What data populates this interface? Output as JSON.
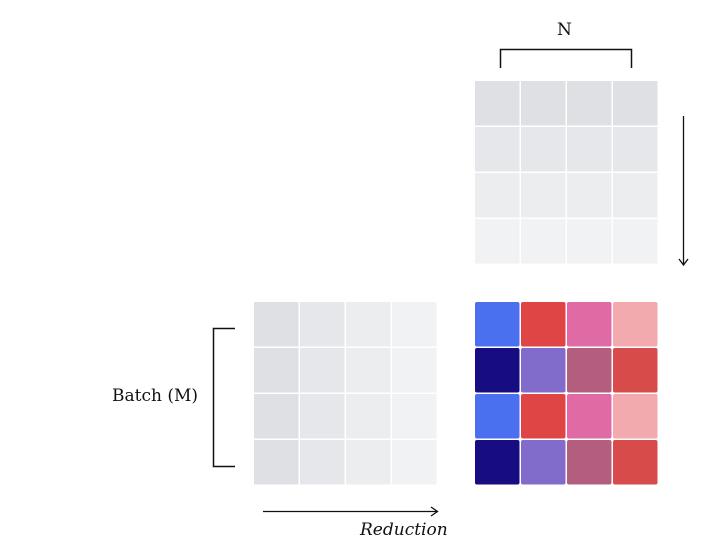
{
  "labels": {
    "n": "N",
    "batch": "Batch (M)",
    "reduction": "Reduction"
  },
  "matrices": {
    "weights": {
      "shading": "by-row",
      "colors": [
        "#dfe0e3",
        "#e6e7ea",
        "#ecedef",
        "#f1f2f4"
      ]
    },
    "inputs": {
      "shading": "by-column",
      "colors": [
        "#dfe0e3",
        "#e6e7ea",
        "#ecedef",
        "#f1f2f4"
      ]
    },
    "output": {
      "rows": [
        [
          "#4a70f0",
          "#e04545",
          "#e06aa3",
          "#f2aaae"
        ],
        [
          "#170c82",
          "#816ccb",
          "#b35e7e",
          "#d84b4b"
        ],
        [
          "#4a70f0",
          "#e04545",
          "#e06aa3",
          "#f2aaae"
        ],
        [
          "#170c82",
          "#816ccb",
          "#b35e7e",
          "#d84b4b"
        ]
      ]
    }
  }
}
